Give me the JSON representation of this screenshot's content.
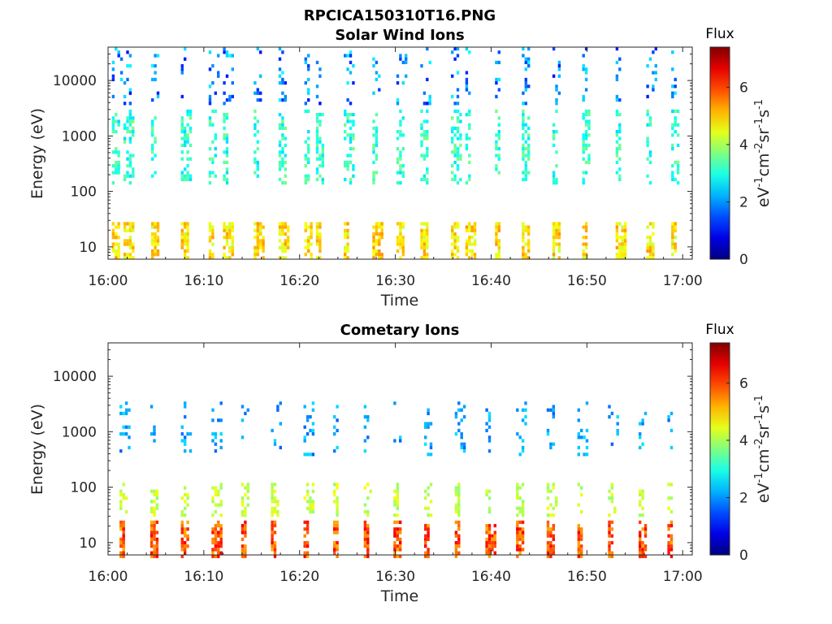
{
  "figure": {
    "title": "RPCICA150310T16.PNG"
  },
  "colorbar": {
    "label_title": "Flux",
    "unit_parts": [
      "eV",
      "-1",
      "cm",
      "-2",
      "sr",
      "-1",
      "s",
      "-1"
    ],
    "ticks": [
      "0",
      "2",
      "4",
      "6"
    ],
    "range": [
      0,
      7.4
    ],
    "colormap": "jet"
  },
  "chart_data": [
    {
      "type": "heatmap",
      "title": "Solar Wind Ions",
      "xlabel": "Time",
      "ylabel": "Energy (eV)",
      "x_ticks": [
        "16:00",
        "16:10",
        "16:20",
        "16:30",
        "16:40",
        "16:50",
        "17:00"
      ],
      "xlim_minutes": [
        0,
        61
      ],
      "y_ticks": [
        "10",
        "100",
        "1000",
        "10000"
      ],
      "y_scale": "log",
      "ylim": [
        6,
        40000
      ],
      "scan_starts_minutes": [
        0.4,
        1.6,
        4.5,
        7.6,
        10.5,
        12.0,
        15.2,
        17.8,
        20.5,
        21.7,
        24.6,
        27.6,
        30.1,
        32.6,
        35.8,
        37.3,
        40.4,
        43.2,
        46.4,
        49.5,
        53.0,
        56.2,
        58.8
      ],
      "bands": [
        {
          "name": "low-energy",
          "e_min": 6,
          "e_max": 28,
          "flux_range": [
            4.2,
            5.4
          ]
        },
        {
          "name": "mid-energy",
          "e_min": 150,
          "e_max": 3000,
          "flux_range": [
            2.5,
            3.7
          ]
        },
        {
          "name": "high-energy",
          "e_min": 4000,
          "e_max": 40000,
          "flux_range": [
            1.0,
            2.8
          ]
        }
      ]
    },
    {
      "type": "heatmap",
      "title": "Cometary Ions",
      "xlabel": "Time",
      "ylabel": "Energy (eV)",
      "x_ticks": [
        "16:00",
        "16:10",
        "16:20",
        "16:30",
        "16:40",
        "16:50",
        "17:00"
      ],
      "xlim_minutes": [
        0,
        61
      ],
      "y_ticks": [
        "10",
        "100",
        "1000",
        "10000"
      ],
      "y_scale": "log",
      "ylim": [
        6,
        40000
      ],
      "scan_starts_minutes": [
        1.2,
        4.4,
        7.6,
        10.8,
        13.9,
        17.0,
        20.4,
        23.5,
        26.7,
        29.8,
        33.0,
        36.2,
        39.4,
        42.6,
        45.8,
        49.0,
        52.2,
        55.4,
        58.4
      ],
      "bands": [
        {
          "name": "low-energy",
          "e_min": 6,
          "e_max": 25,
          "flux_range": [
            5.2,
            6.6
          ]
        },
        {
          "name": "mid-energy",
          "e_min": 30,
          "e_max": 120,
          "flux_range": [
            3.8,
            4.6
          ]
        },
        {
          "name": "upper-energy",
          "e_min": 400,
          "e_max": 3500,
          "flux_range": [
            1.6,
            2.6
          ]
        }
      ]
    }
  ]
}
